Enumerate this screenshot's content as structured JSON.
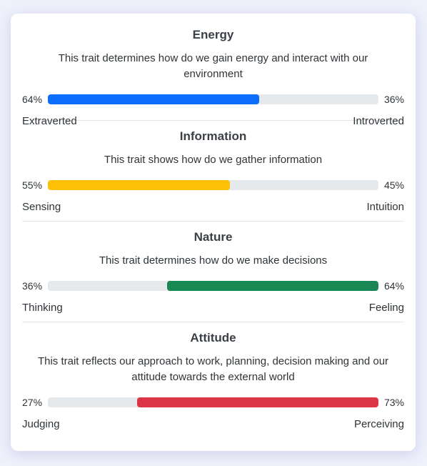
{
  "traits": [
    {
      "title": "Energy",
      "description": "This trait determines how do we gain energy and interact with our environment",
      "left_percent": "64%",
      "right_percent": "36%",
      "left_label": "Extraverted",
      "right_label": "Introverted",
      "fill_side": "left",
      "fill_fraction": 0.64,
      "color": "#0d6efd"
    },
    {
      "title": "Information",
      "description": "This trait shows how do we gather information",
      "left_percent": "55%",
      "right_percent": "45%",
      "left_label": "Sensing",
      "right_label": "Intuition",
      "fill_side": "left",
      "fill_fraction": 0.55,
      "color": "#ffc107"
    },
    {
      "title": "Nature",
      "description": "This trait determines how do we make decisions",
      "left_percent": "36%",
      "right_percent": "64%",
      "left_label": "Thinking",
      "right_label": "Feeling",
      "fill_side": "right",
      "fill_fraction": 0.64,
      "color": "#198754"
    },
    {
      "title": "Attitude",
      "description": "This trait reflects our approach to work, planning, decision making and our attitude towards the external world",
      "left_percent": "27%",
      "right_percent": "73%",
      "left_label": "Judging",
      "right_label": "Perceiving",
      "fill_side": "right",
      "fill_fraction": 0.73,
      "color": "#dc3545"
    }
  ]
}
